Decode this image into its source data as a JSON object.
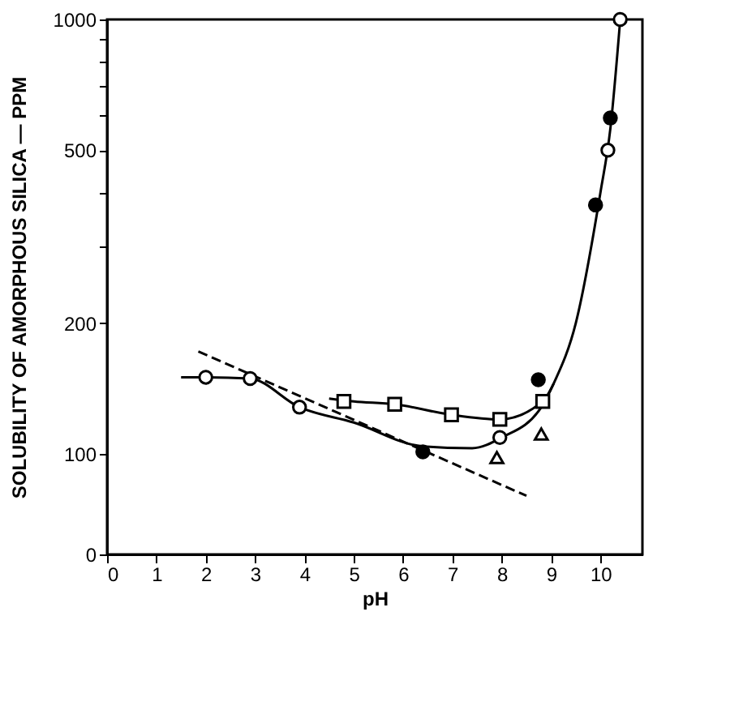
{
  "chart_data": {
    "type": "scatter",
    "xlabel": "pH",
    "ylabel": "SOLUBILITY OF AMORPHOUS SILICA — PPM",
    "xlim": [
      0,
      10.85
    ],
    "ylim": [
      0,
      1000
    ],
    "log": "y",
    "grid": false,
    "xticks": [
      0,
      1,
      2,
      3,
      4,
      5,
      6,
      7,
      8,
      9,
      10
    ],
    "yticks": [
      0,
      100,
      200,
      {
        "value": 300,
        "label": null
      },
      {
        "value": 400,
        "label": null
      },
      500,
      {
        "value": 600,
        "label": null
      },
      {
        "value": 700,
        "label": null
      },
      {
        "value": 800,
        "label": null
      },
      {
        "value": 900,
        "label": null
      },
      1000
    ],
    "series": [
      {
        "type": "line",
        "line_style": "solid",
        "marker": "none",
        "color": "#000000",
        "x": [
          1.5,
          2.0,
          2.9,
          3.9,
          5.0,
          6.4,
          7.4,
          8.0,
          8.8,
          9.05,
          9.5,
          10.0,
          10.2,
          10.4
        ],
        "values": [
          150,
          150,
          149,
          128,
          118,
          104,
          103,
          109,
          128,
          145,
          200,
          400,
          560,
          1000
        ]
      },
      {
        "type": "line",
        "line_style": "solid",
        "marker": "none",
        "color": "#000000",
        "x": [
          4.5,
          5.0,
          5.83,
          6.98,
          7.96,
          8.83,
          9.05
        ],
        "values": [
          134,
          132,
          130,
          123,
          120,
          132,
          145
        ]
      },
      {
        "type": "line",
        "line_style": "dashed",
        "marker": "none",
        "color": "#000000",
        "x": [
          1.85,
          8.5
        ],
        "values": [
          172,
          80
        ]
      },
      {
        "marker": "circle",
        "color": "#ffffff",
        "x": [
          2.0,
          2.9,
          3.9,
          7.96,
          10.15,
          10.4
        ],
        "values": [
          150,
          149,
          128,
          109,
          500,
          1000
        ]
      },
      {
        "marker": "circle",
        "color": "#000000",
        "x": [
          6.4,
          8.74,
          9.9,
          10.2
        ],
        "values": [
          101,
          148,
          374,
          593
        ]
      },
      {
        "marker": "square",
        "color": "#ffffff",
        "x": [
          4.8,
          5.83,
          6.98,
          7.96,
          8.83
        ],
        "values": [
          132,
          130,
          123,
          120,
          132
        ]
      },
      {
        "marker": "triangle",
        "color": "#ffffff",
        "x": [
          8.8,
          7.9
        ],
        "values": [
          111,
          98
        ]
      }
    ]
  }
}
